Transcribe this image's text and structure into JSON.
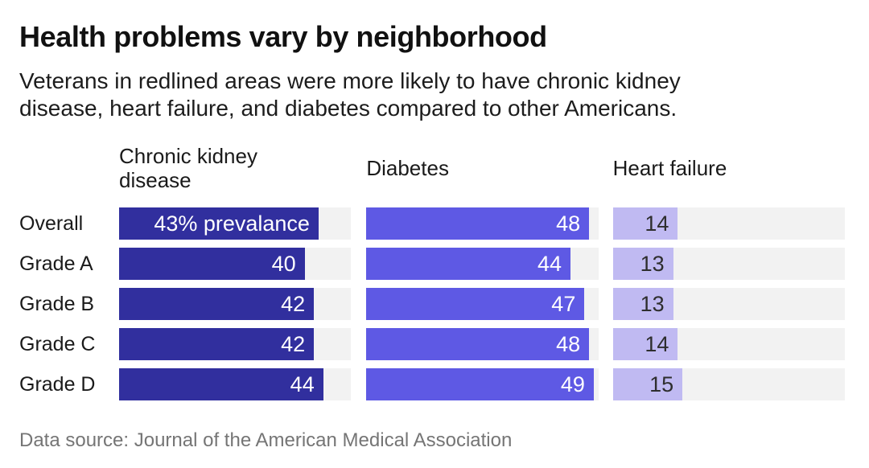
{
  "chart_data": {
    "type": "bar",
    "orientation": "horizontal",
    "title": "Health problems vary by neighborhood",
    "subtitle_lines": [
      "Veterans in redlined areas were more likely to have chronic kidney",
      "disease, heart failure, and diabetes compared to other Americans."
    ],
    "source": "Data source: Journal of the American Medical Association",
    "categories": [
      "Overall",
      "Grade A",
      "Grade B",
      "Grade C",
      "Grade D"
    ],
    "series": [
      {
        "name": "Chronic kidney disease",
        "values": [
          43,
          40,
          42,
          42,
          44
        ],
        "labels": [
          "43% prevalance",
          "40",
          "42",
          "42",
          "44"
        ],
        "color": "#312f9e",
        "label_color": "#ffffff"
      },
      {
        "name": "Diabetes",
        "values": [
          48,
          44,
          47,
          48,
          49
        ],
        "labels": [
          "48",
          "44",
          "47",
          "48",
          "49"
        ],
        "color": "#5e59e4",
        "label_color": "#ffffff"
      },
      {
        "name": "Heart failure",
        "values": [
          14,
          13,
          13,
          14,
          15
        ],
        "labels": [
          "14",
          "13",
          "13",
          "14",
          "15"
        ],
        "color": "#c0baf2",
        "label_color": "#2e2e2e"
      }
    ],
    "xlim": [
      0,
      50
    ],
    "grid": false,
    "legend_position": "column-headers",
    "track_color": "#f2f2f2",
    "xlabel": "",
    "ylabel": ""
  }
}
